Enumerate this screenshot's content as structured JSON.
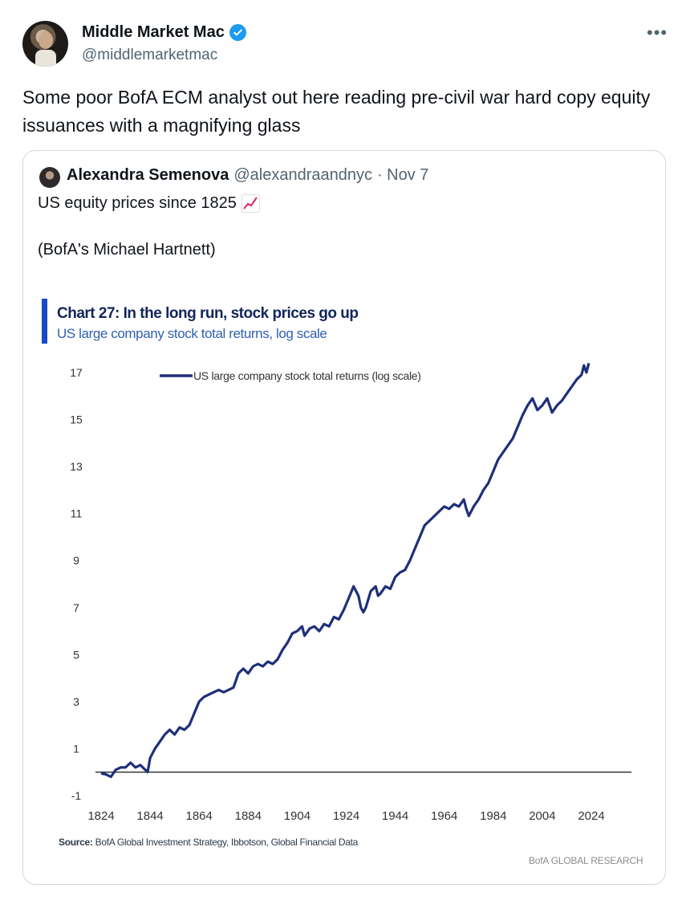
{
  "tweet": {
    "author_name": "Middle Market Mac",
    "handle": "@middlemarketmac",
    "more_icon": "more-horizontal-icon",
    "text": "Some poor BofA ECM analyst out here reading pre-civil war hard copy equity issuances with a magnifying glass"
  },
  "quoted_tweet": {
    "author_name": "Alexandra Semenova",
    "handle": "@alexandraandnyc",
    "date": "· Nov 7",
    "text_line1": "US equity prices since 1825",
    "emoji": "chart-increasing-emoji",
    "text_line2": "(BofA's Michael Hartnett)"
  },
  "colors": {
    "verified": "#1d9bf0",
    "chart_line": "#1f2f7a",
    "accent_bar": "#1749c8",
    "chart_title": "#13255a",
    "chart_subtitle": "#2f5fb2"
  },
  "chart_data": {
    "type": "line",
    "title": "Chart 27: In the long run, stock prices go up",
    "subtitle": "US large company stock total returns, log scale",
    "source_label": "Source:",
    "source_text": "BofA Global Investment Strategy, Ibbotson, Global Financial Data",
    "brand": "BofA GLOBAL RESEARCH",
    "legend_position": "top-left",
    "grid": false,
    "xlim": [
      1824,
      2024
    ],
    "ylim": [
      -1,
      17
    ],
    "x_ticks": [
      "1824",
      "1844",
      "1864",
      "1884",
      "1904",
      "1924",
      "1944",
      "1964",
      "1984",
      "2004",
      "2024"
    ],
    "y_ticks": [
      "17",
      "15",
      "13",
      "11",
      "9",
      "7",
      "5",
      "3",
      "1",
      "-1"
    ],
    "series": [
      {
        "name": "US large company stock total returns (log scale)",
        "x": [
          1824,
          1826,
          1828,
          1830,
          1832,
          1834,
          1836,
          1838,
          1840,
          1842,
          1843,
          1844,
          1846,
          1848,
          1850,
          1852,
          1854,
          1856,
          1858,
          1860,
          1862,
          1864,
          1866,
          1868,
          1870,
          1872,
          1874,
          1876,
          1878,
          1880,
          1882,
          1884,
          1886,
          1888,
          1890,
          1892,
          1894,
          1896,
          1898,
          1900,
          1902,
          1904,
          1906,
          1907,
          1909,
          1911,
          1913,
          1915,
          1917,
          1919,
          1921,
          1923,
          1925,
          1927,
          1929,
          1930,
          1931,
          1932,
          1934,
          1936,
          1937,
          1938,
          1940,
          1942,
          1944,
          1946,
          1948,
          1950,
          1952,
          1954,
          1956,
          1958,
          1960,
          1962,
          1964,
          1966,
          1968,
          1970,
          1972,
          1973,
          1974,
          1976,
          1978,
          1980,
          1982,
          1984,
          1986,
          1988,
          1990,
          1992,
          1994,
          1996,
          1998,
          2000,
          2002,
          2004,
          2006,
          2008,
          2010,
          2012,
          2014,
          2016,
          2018,
          2020,
          2021,
          2022,
          2023
        ],
        "y": [
          -0.05,
          -0.1,
          -0.2,
          0.1,
          0.2,
          0.2,
          0.4,
          0.2,
          0.3,
          0.1,
          0.0,
          0.6,
          1.0,
          1.3,
          1.6,
          1.8,
          1.6,
          1.9,
          1.8,
          2.0,
          2.5,
          3.0,
          3.2,
          3.3,
          3.4,
          3.5,
          3.4,
          3.5,
          3.6,
          4.2,
          4.4,
          4.2,
          4.5,
          4.6,
          4.5,
          4.7,
          4.6,
          4.8,
          5.2,
          5.5,
          5.9,
          6.0,
          6.2,
          5.8,
          6.1,
          6.2,
          6.0,
          6.3,
          6.2,
          6.6,
          6.5,
          6.9,
          7.4,
          7.9,
          7.5,
          7.0,
          6.8,
          7.0,
          7.7,
          7.9,
          7.5,
          7.6,
          7.9,
          7.8,
          8.3,
          8.5,
          8.6,
          9.0,
          9.5,
          10.0,
          10.5,
          10.7,
          10.9,
          11.1,
          11.3,
          11.2,
          11.4,
          11.3,
          11.6,
          11.2,
          10.9,
          11.3,
          11.6,
          12.0,
          12.3,
          12.8,
          13.3,
          13.6,
          13.9,
          14.2,
          14.7,
          15.2,
          15.6,
          15.9,
          15.4,
          15.6,
          15.9,
          15.3,
          15.6,
          15.8,
          16.1,
          16.4,
          16.7,
          16.9,
          17.3,
          17.0,
          17.4
        ]
      }
    ]
  }
}
